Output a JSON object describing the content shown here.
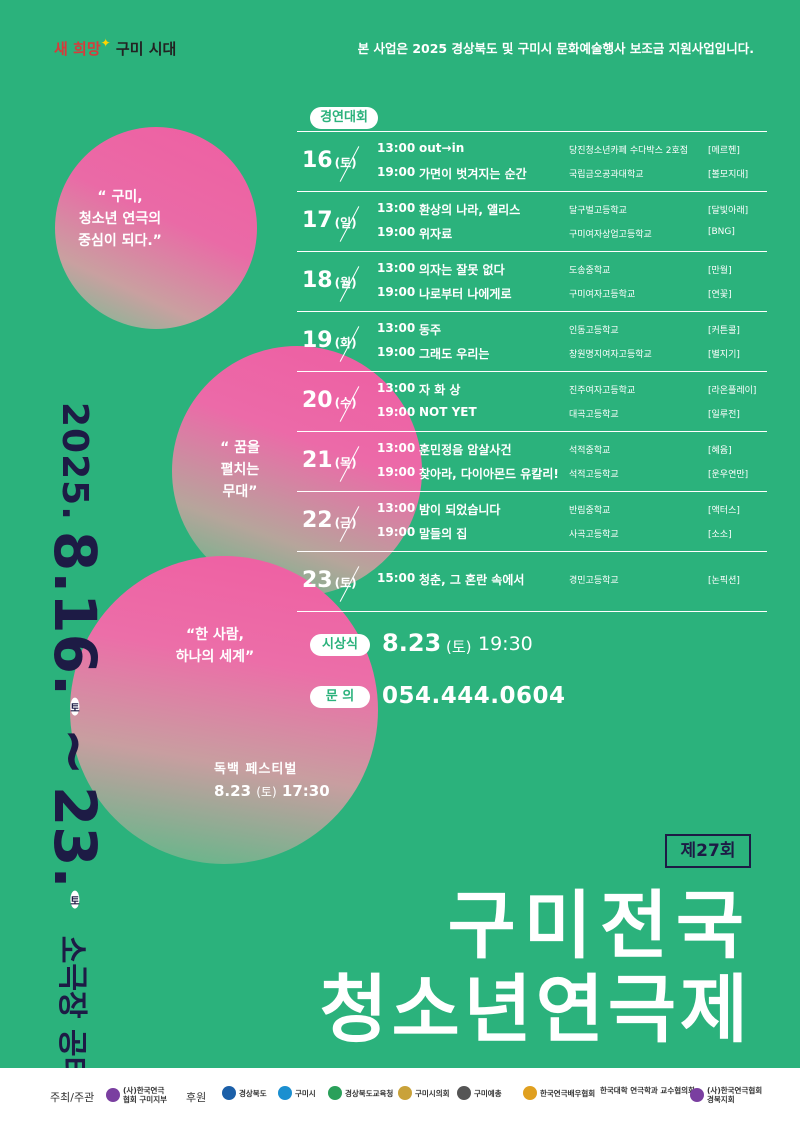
{
  "header": {
    "logo_part1": "새 희망",
    "logo_part2": "구미 시대",
    "support_notice": "본 사업은 2025 경상북도 및 구미시 문화예술행사 보조금 지원사업입니다."
  },
  "quotes": {
    "q1_line1": "“ 구미,",
    "q1_line2": "청소년 연극의",
    "q1_line3": "중심이 되다.”",
    "q2_line1": "“ 꿈을",
    "q2_line2": "펼치는",
    "q2_line3": "무대”",
    "q3_line1": "“한 사람,",
    "q3_line2": "하나의 세계”"
  },
  "vertical": {
    "year": "2025.",
    "start": "8.16.",
    "start_day": "토",
    "tilde": "~",
    "end": "23.",
    "end_day": "토",
    "venue": "소극장 공터다"
  },
  "contest_label": "경연대회",
  "schedule": [
    {
      "day": "16",
      "weekday": "(토)",
      "performances": [
        {
          "time": "13:00",
          "title": "out→in",
          "school": "당진청소년카페 수다박스 2호점",
          "troupe": "[메르헨]"
        },
        {
          "time": "19:00",
          "title": "가면이 벗겨지는 순간",
          "school": "국립금오공과대학교",
          "troupe": "[볼모지대]"
        }
      ]
    },
    {
      "day": "17",
      "weekday": "(일)",
      "performances": [
        {
          "time": "13:00",
          "title": "환상의 나라, 앨리스",
          "school": "달구벌고등학교",
          "troupe": "[달빛아래]"
        },
        {
          "time": "19:00",
          "title": "위자료",
          "school": "구미여자상업고등학교",
          "troupe": "[BNG]"
        }
      ]
    },
    {
      "day": "18",
      "weekday": "(월)",
      "performances": [
        {
          "time": "13:00",
          "title": "의자는 잘못 없다",
          "school": "도송중학교",
          "troupe": "[만월]"
        },
        {
          "time": "19:00",
          "title": "나로부터 나에게로",
          "school": "구미여자고등학교",
          "troupe": "[연꽃]"
        }
      ]
    },
    {
      "day": "19",
      "weekday": "(화)",
      "performances": [
        {
          "time": "13:00",
          "title": "동주",
          "school": "인동고등학교",
          "troupe": "[커튼콜]"
        },
        {
          "time": "19:00",
          "title": "그래도 우리는",
          "school": "창원명지여자고등학교",
          "troupe": "[별지기]"
        }
      ]
    },
    {
      "day": "20",
      "weekday": "(수)",
      "performances": [
        {
          "time": "13:00",
          "title": "자 화 상",
          "school": "진주여자고등학교",
          "troupe": "[라온플레이]"
        },
        {
          "time": "19:00",
          "title": "NOT YET",
          "school": "대곡고등학교",
          "troupe": "[일루전]"
        }
      ]
    },
    {
      "day": "21",
      "weekday": "(목)",
      "performances": [
        {
          "time": "13:00",
          "title": "훈민정음 암살사건",
          "school": "석적중학교",
          "troupe": "[혜윰]"
        },
        {
          "time": "19:00",
          "title": "찾아라, 다이아몬드 유칼리!",
          "school": "석적고등학교",
          "troupe": "[운우연만]"
        }
      ]
    },
    {
      "day": "22",
      "weekday": "(금)",
      "performances": [
        {
          "time": "13:00",
          "title": "밤이 되었습니다",
          "school": "반림중학교",
          "troupe": "[액터스]"
        },
        {
          "time": "19:00",
          "title": "말들의 집",
          "school": "사곡고등학교",
          "troupe": "[소소]"
        }
      ]
    },
    {
      "day": "23",
      "weekday": "(토)",
      "performances": [
        {
          "time": "15:00",
          "title": "청춘, 그 혼란 속에서",
          "school": "경민고등학교",
          "troupe": "[논픽션]"
        }
      ]
    }
  ],
  "award": {
    "label": "시상식",
    "date": "8.23",
    "weekday": "(토)",
    "time": "19:30"
  },
  "inquiry": {
    "label": "문 의",
    "phone": "054.444.0604"
  },
  "monologue": {
    "title": "독백 페스티벌",
    "date": "8.23",
    "weekday": "(토)",
    "time": "17:30"
  },
  "edition": "제27회",
  "title_line1": "구미전국",
  "title_line2": "청소년연극제",
  "footer": {
    "host_label": "주최/주관",
    "host_org": "(사)한국연극협회 구미지부",
    "sponsor_label": "후원",
    "sponsors": [
      {
        "name": "경상북도",
        "color": "#1b5fa8"
      },
      {
        "name": "구미시",
        "color": "#1b8fd0"
      },
      {
        "name": "경상북도교육청",
        "color": "#2aa05a"
      },
      {
        "name": "구미시의회",
        "color": "#c9a23a"
      },
      {
        "name": "구미예총",
        "color": "#555555"
      },
      {
        "name": "한국연극배우협회",
        "color": "#e0a020"
      },
      {
        "name": "한국대학 연극학과 교수협의회",
        "color": "#444444"
      },
      {
        "name": "(사)한국연극협회 경북지회",
        "color": "#7a3fa0"
      }
    ]
  }
}
